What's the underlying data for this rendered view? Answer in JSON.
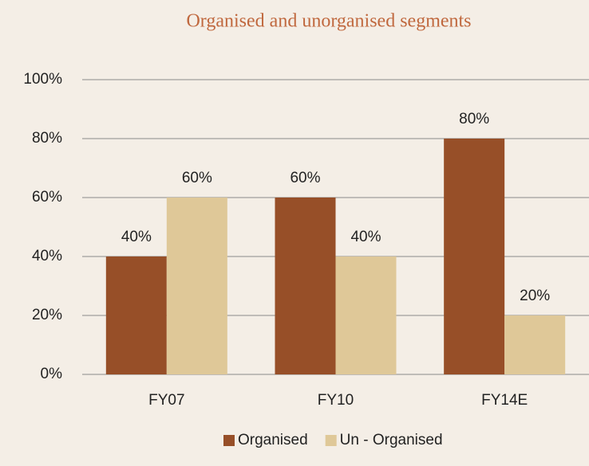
{
  "chart_data": {
    "type": "bar",
    "title": "Organised and unorganised segments",
    "categories": [
      "FY07",
      "FY10",
      "FY14E"
    ],
    "series": [
      {
        "name": "Organised",
        "color": "#974f28",
        "values": [
          40,
          60,
          80
        ],
        "value_labels": [
          "40%",
          "60%",
          "80%"
        ]
      },
      {
        "name": "Un - Organised",
        "color": "#dfc898",
        "values": [
          60,
          40,
          20
        ],
        "value_labels": [
          "60%",
          "40%",
          "20%"
        ]
      }
    ],
    "ylim": [
      0,
      100
    ],
    "yticks": [
      {
        "value": 0,
        "label": "0%"
      },
      {
        "value": 20,
        "label": "20%"
      },
      {
        "value": 40,
        "label": "40%"
      },
      {
        "value": 60,
        "label": "60%"
      },
      {
        "value": 80,
        "label": "80%"
      },
      {
        "value": 100,
        "label": "100%"
      }
    ],
    "grid": true,
    "legend": "bottom"
  }
}
